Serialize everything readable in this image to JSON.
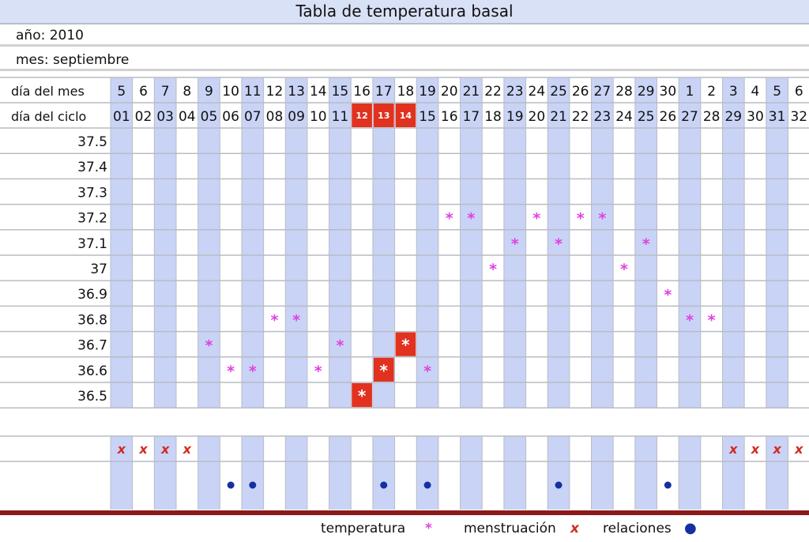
{
  "title": "Tabla de temperatura basal",
  "year_label": "año: 2010",
  "month_label": "mes: septiembre",
  "colors": {
    "column_blue": "#c9d3f6",
    "grid": "#b9bcc4",
    "fertile": "#e0321f",
    "temp_star": "#e040e0",
    "menstruation": "#d22b1e",
    "relations": "#1530a0",
    "bottom_bar": "#8b1a1a"
  },
  "chart_data": {
    "type": "scatter",
    "title": "Tabla de temperatura basal",
    "row_labels": {
      "day_of_month": "día del mes",
      "day_of_cycle": "día del ciclo"
    },
    "day_of_month": [
      "5",
      "6",
      "7",
      "8",
      "9",
      "10",
      "11",
      "12",
      "13",
      "14",
      "15",
      "16",
      "17",
      "18",
      "19",
      "20",
      "21",
      "22",
      "23",
      "24",
      "25",
      "26",
      "27",
      "28",
      "29",
      "30",
      "1",
      "2",
      "3",
      "4",
      "5",
      "6"
    ],
    "day_of_cycle": [
      "01",
      "02",
      "03",
      "04",
      "05",
      "06",
      "07",
      "08",
      "09",
      "10",
      "11",
      "12",
      "13",
      "14",
      "15",
      "16",
      "17",
      "18",
      "19",
      "20",
      "21",
      "22",
      "23",
      "24",
      "25",
      "26",
      "27",
      "28",
      "29",
      "30",
      "31",
      "32"
    ],
    "fertile_days": [
      12,
      13,
      14
    ],
    "temperature_levels": [
      "37.5",
      "37.4",
      "37.3",
      "37.2",
      "37.1",
      "37",
      "36.9",
      "36.8",
      "36.7",
      "36.6",
      "36.5"
    ],
    "temperatures": [
      null,
      null,
      null,
      null,
      36.7,
      36.6,
      36.6,
      36.8,
      36.8,
      36.6,
      36.7,
      36.5,
      36.6,
      36.7,
      36.6,
      37.2,
      37.2,
      37.0,
      37.1,
      37.2,
      37.1,
      37.2,
      37.2,
      37.0,
      37.1,
      36.9,
      36.8,
      36.8,
      null,
      null,
      null,
      null
    ],
    "menstruation_days": [
      1,
      2,
      3,
      4,
      29,
      30,
      31,
      32
    ],
    "relations_days": [
      6,
      7,
      13,
      15,
      21,
      26
    ]
  },
  "legend": {
    "temperature": "temperatura",
    "temperature_symbol": "*",
    "menstruation": "menstruación",
    "menstruation_symbol": "x",
    "relations": "relaciones",
    "relations_symbol": "●"
  }
}
